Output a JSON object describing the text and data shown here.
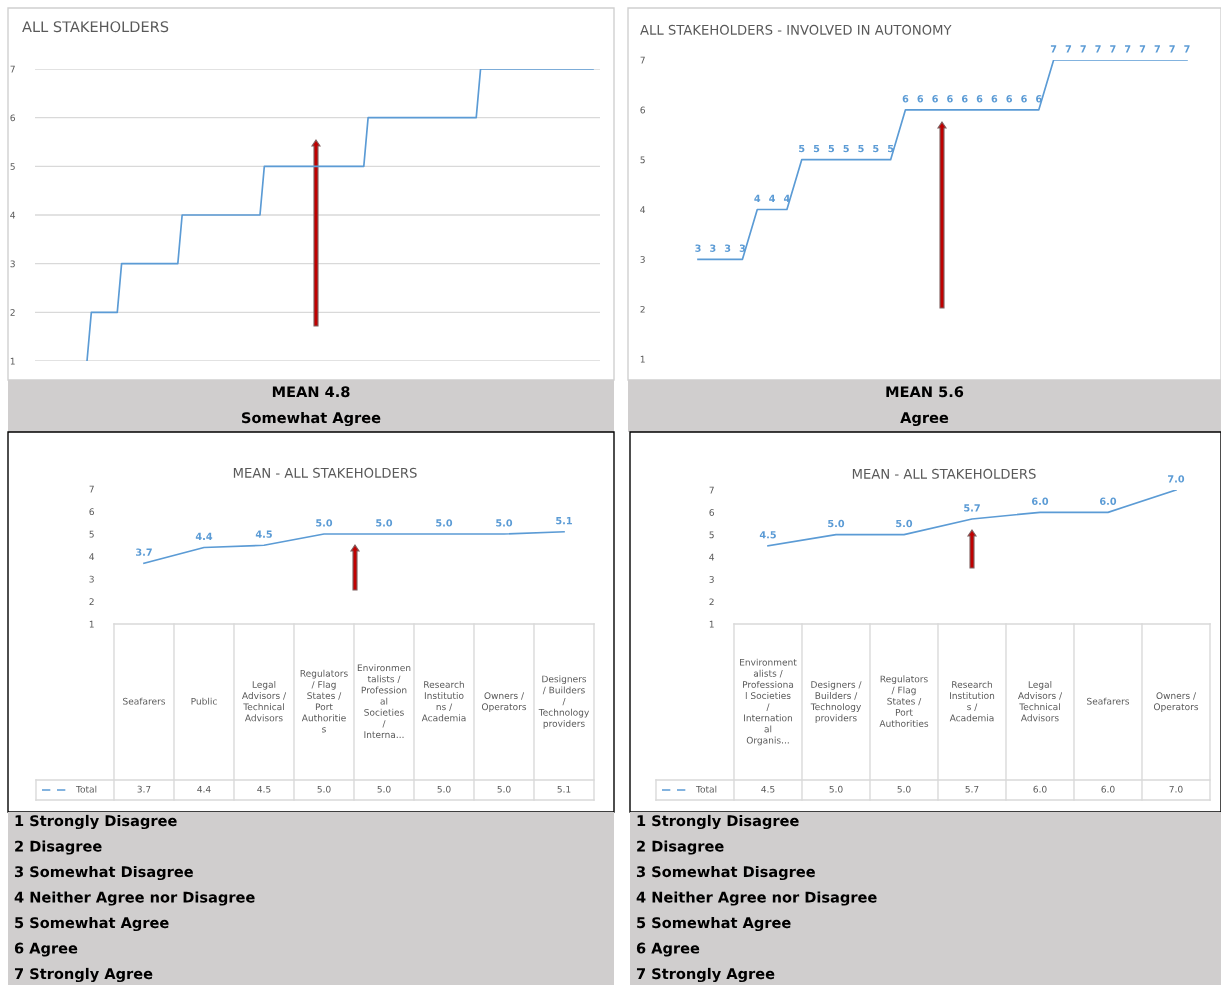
{
  "chart_data": [
    {
      "type": "line",
      "title": "ALL STAKEHOLDERS",
      "categories": [
        null,
        null,
        null,
        null,
        null,
        null,
        null,
        null,
        null,
        null,
        null,
        null,
        null,
        null,
        null,
        null,
        null,
        null,
        null,
        null,
        null,
        null,
        null,
        null,
        null,
        null,
        null,
        null,
        null,
        null,
        null,
        null,
        null,
        null,
        null,
        null,
        null,
        null,
        null,
        null,
        null,
        null,
        null,
        null,
        null,
        null,
        null,
        null,
        null,
        null,
        null,
        null,
        null,
        null,
        null,
        null,
        null,
        null,
        null,
        null,
        null,
        null,
        null,
        null,
        null,
        null,
        null,
        null,
        null,
        null,
        null,
        null,
        null,
        null,
        null,
        null,
        null,
        null,
        null,
        null,
        null,
        null,
        null,
        null,
        null,
        null,
        null,
        null,
        null,
        null,
        null,
        null,
        null,
        null,
        null,
        null,
        null,
        null,
        null,
        null,
        null,
        null,
        null,
        null,
        null,
        null,
        null,
        null,
        null,
        null,
        null,
        null,
        null,
        null,
        null,
        null,
        null,
        null
      ],
      "series": [
        {
          "color": "#5b9bd5",
          "values": [
            1,
            2,
            2,
            2,
            2,
            2,
            2,
            2,
            3,
            3,
            3,
            3,
            3,
            3,
            3,
            3,
            3,
            3,
            3,
            3,
            3,
            3,
            4,
            4,
            4,
            4,
            4,
            4,
            4,
            4,
            4,
            4,
            4,
            4,
            4,
            4,
            4,
            4,
            4,
            4,
            4,
            5,
            5,
            5,
            5,
            5,
            5,
            5,
            5,
            5,
            5,
            5,
            5,
            5,
            5,
            5,
            5,
            5,
            5,
            5,
            5,
            5,
            5,
            5,
            5,
            6,
            6,
            6,
            6,
            6,
            6,
            6,
            6,
            6,
            6,
            6,
            6,
            6,
            6,
            6,
            6,
            6,
            6,
            6,
            6,
            6,
            6,
            6,
            6,
            6,
            6,
            7,
            7,
            7,
            7,
            7,
            7,
            7,
            7,
            7,
            7,
            7,
            7,
            7,
            7,
            7,
            7,
            7,
            7,
            7,
            7,
            7,
            7,
            7,
            7,
            7,
            7,
            7
          ]
        }
      ],
      "ylim": [
        1,
        7
      ],
      "yticks": [
        1,
        2,
        3,
        4,
        5,
        6,
        7
      ],
      "grid": "y",
      "tick_labels": "y",
      "annotations": [
        "MEAN 4.8",
        "Somewhat Agree"
      ]
    },
    {
      "type": "line",
      "title": "ALL STAKEHOLDERS - INVOLVED IN AUTONOMY",
      "categories": [
        null,
        null,
        null,
        null,
        null,
        null,
        null,
        null,
        null,
        null,
        null,
        null,
        null,
        null,
        null,
        null,
        null,
        null,
        null,
        null,
        null,
        null,
        null,
        null,
        null,
        null,
        null,
        null,
        null,
        null,
        null,
        null,
        null,
        null
      ],
      "series": [
        {
          "color": "#5b9bd5",
          "values": [
            3,
            3,
            3,
            3,
            4,
            4,
            4,
            5,
            5,
            5,
            5,
            5,
            5,
            5,
            6,
            6,
            6,
            6,
            6,
            6,
            6,
            6,
            6,
            6,
            7,
            7,
            7,
            7,
            7,
            7,
            7,
            7,
            7,
            7
          ]
        }
      ],
      "ylim": [
        1,
        7
      ],
      "yticks": [
        1,
        2,
        3,
        4,
        5,
        6,
        7
      ],
      "data_labels": true,
      "tick_labels": "y",
      "marker": "none",
      "annotations": [
        "MEAN 5.6",
        "Agree"
      ]
    },
    {
      "type": "line",
      "title": "MEAN - ALL STAKEHOLDERS",
      "categories": [
        "Seafarers",
        "Public",
        "Legal Advisors / Technical Advisors",
        "Regulators / Flag States / Port Authorities",
        "Environmentalists / Professional Societies / Interna...",
        "Research Institutions / Academia",
        "Owners / Operators",
        "Designers / Builders / Technology providers"
      ],
      "series": [
        {
          "name": "Total",
          "color": "#5b9bd5",
          "values": [
            3.7,
            4.4,
            4.5,
            5.0,
            5.0,
            5.0,
            5.0,
            5.1
          ],
          "value_labels": [
            "3.7",
            "4.4",
            "4.5",
            "5.0",
            "5.0",
            "5.0",
            "5.0",
            "5.1"
          ]
        }
      ],
      "ylim": [
        1,
        7
      ],
      "yticks": [
        1,
        2,
        3,
        4,
        5,
        6,
        7
      ],
      "legend": "bottom left",
      "marker": "none",
      "annotations": [
        "1 Strongly Disagree",
        "2 Disagree",
        "3 Somewhat Disagree",
        "4 Neither Agree nor Disagree",
        "5 Somewhat Agree",
        "6 Agree",
        "7 Strongly Agree"
      ]
    },
    {
      "type": "line",
      "title": "MEAN - ALL STAKEHOLDERS",
      "categories": [
        "Environmentalists / Professional Societies / International Organis...",
        "Designers / Builders / Technology providers",
        "Regulators / Flag States / Port Authorities",
        "Research Institutions / Academia",
        "Legal Advisors / Technical Advisors",
        "Seafarers",
        "Owners / Operators"
      ],
      "series": [
        {
          "name": "Total",
          "color": "#5b9bd5",
          "values": [
            4.5,
            5.0,
            5.0,
            5.7,
            6.0,
            6.0,
            7.0
          ],
          "value_labels": [
            "4.5",
            "5.0",
            "5.0",
            "5.7",
            "6.0",
            "6.0",
            "7.0"
          ]
        }
      ],
      "ylim": [
        1,
        7
      ],
      "yticks": [
        1,
        2,
        3,
        4,
        5,
        6,
        7
      ],
      "legend": "bottom left",
      "marker": "none",
      "annotations": [
        "1 Strongly Disagree",
        "2 Disagree",
        "3 Somewhat Disagree",
        "4 Neither Agree nor Disagree",
        "5 Somewhat Agree",
        "6 Agree",
        "7 Strongly Agree"
      ]
    }
  ]
}
